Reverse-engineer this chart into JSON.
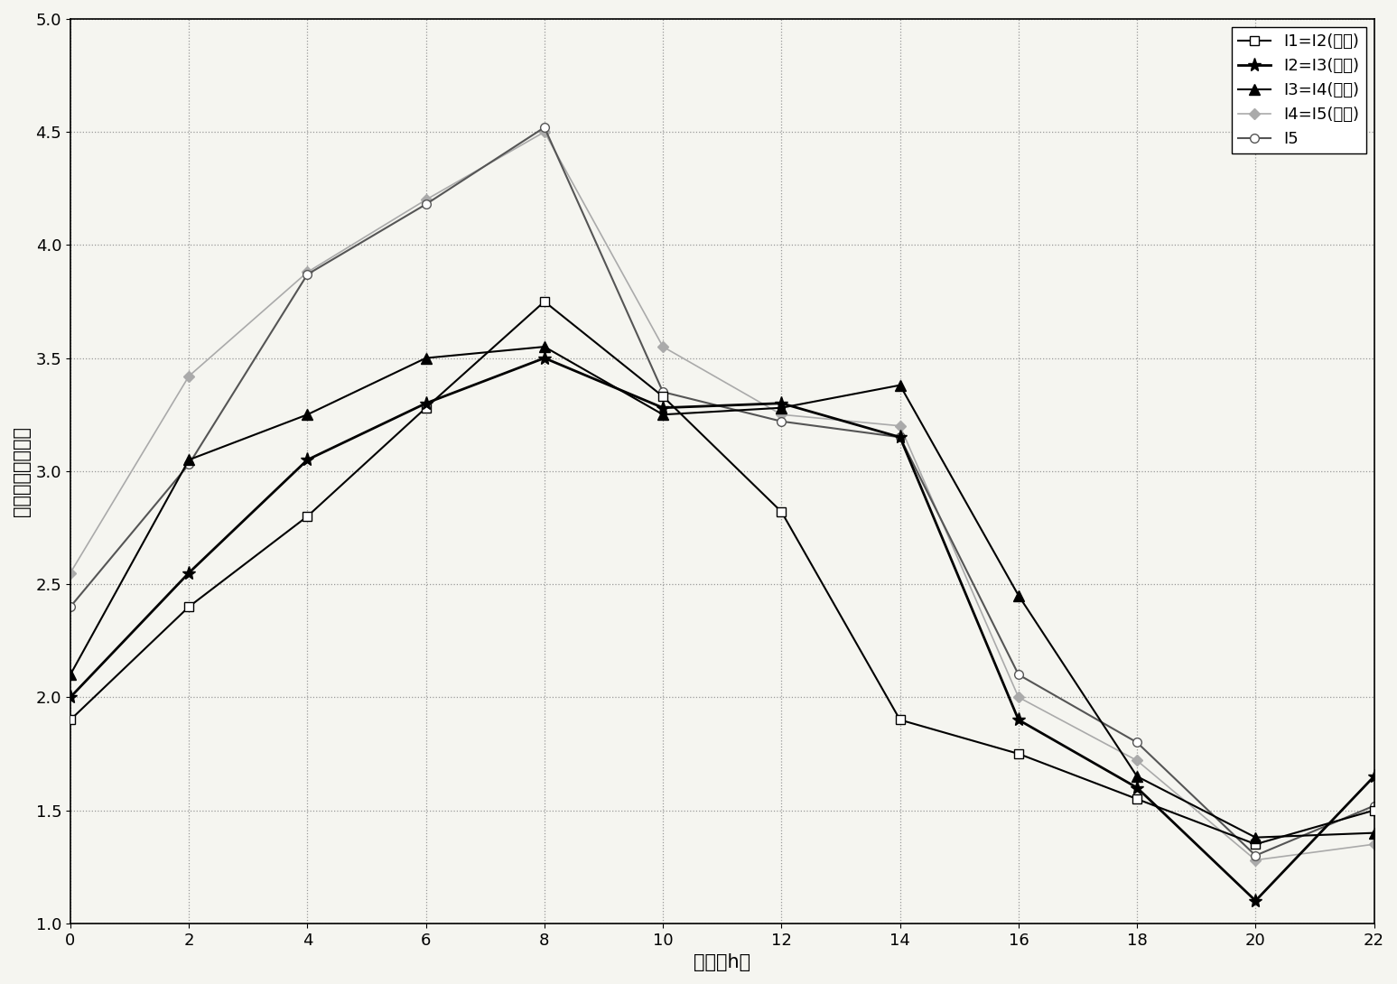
{
  "x": [
    0,
    2,
    4,
    6,
    8,
    10,
    12,
    14,
    16,
    18,
    20,
    22
  ],
  "series_order": [
    "I1=I2(预测)",
    "I2=I3(预测)",
    "I3=I4(预测)",
    "I4=I5(预测)",
    "I5"
  ],
  "series": {
    "I1=I2(预测)": {
      "y": [
        1.9,
        2.4,
        2.8,
        3.28,
        3.75,
        3.33,
        2.82,
        1.9,
        1.75,
        1.55,
        1.35,
        1.5
      ],
      "color": "#000000",
      "marker": "s",
      "linestyle": "-",
      "linewidth": 1.5,
      "markersize": 7,
      "markerfacecolor": "white",
      "zorder": 3
    },
    "I2=I3(预测)": {
      "y": [
        2.0,
        2.55,
        3.05,
        3.3,
        3.5,
        3.28,
        3.3,
        3.15,
        1.9,
        1.6,
        1.1,
        1.65
      ],
      "color": "#000000",
      "marker": "*",
      "linestyle": "-",
      "linewidth": 2.0,
      "markersize": 11,
      "markerfacecolor": "#000000",
      "zorder": 4
    },
    "I3=I4(预测)": {
      "y": [
        2.1,
        3.05,
        3.25,
        3.5,
        3.55,
        3.25,
        3.28,
        3.38,
        2.45,
        1.65,
        1.38,
        1.4
      ],
      "color": "#000000",
      "marker": "^",
      "linestyle": "-",
      "linewidth": 1.5,
      "markersize": 8,
      "markerfacecolor": "#000000",
      "zorder": 3
    },
    "I4=I5(预测)": {
      "y": [
        2.55,
        3.42,
        3.88,
        4.2,
        4.5,
        3.55,
        3.25,
        3.2,
        2.0,
        1.72,
        1.28,
        1.35
      ],
      "color": "#aaaaaa",
      "marker": "D",
      "linestyle": "-",
      "linewidth": 1.2,
      "markersize": 6,
      "markerfacecolor": "#aaaaaa",
      "zorder": 2
    },
    "I5": {
      "y": [
        2.4,
        3.03,
        3.87,
        4.18,
        4.52,
        3.35,
        3.22,
        3.15,
        2.1,
        1.8,
        1.3,
        1.52
      ],
      "color": "#555555",
      "marker": "o",
      "linestyle": "-",
      "linewidth": 1.5,
      "markersize": 7,
      "markerfacecolor": "white",
      "zorder": 2
    }
  },
  "xlabel": "时间（h）",
  "ylabel": "电离层延迟（米）",
  "xlim": [
    0,
    22
  ],
  "ylim": [
    1.0,
    5.0
  ],
  "xticks": [
    0,
    2,
    4,
    6,
    8,
    10,
    12,
    14,
    16,
    18,
    20,
    22
  ],
  "yticks": [
    1.0,
    1.5,
    2.0,
    2.5,
    3.0,
    3.5,
    4.0,
    4.5,
    5.0
  ],
  "grid_color": "#999999",
  "background_color": "#f5f5f0",
  "legend_loc": "upper right",
  "font_size_labels": 15,
  "font_size_ticks": 13,
  "legend_labels": [
    "I1=I2(预测)",
    "I2=I3(预测)",
    "I3=I4(预测)",
    "I4=I5(预测)",
    "I5"
  ]
}
